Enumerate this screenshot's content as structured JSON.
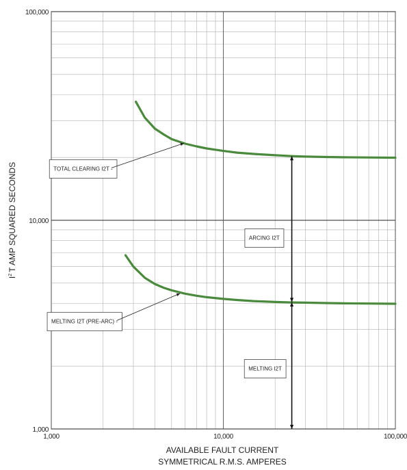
{
  "chart_data": {
    "type": "line",
    "x_scale": "log",
    "y_scale": "log",
    "xlim": [
      1000,
      100000
    ],
    "ylim": [
      1000,
      100000
    ],
    "x_ticks": [
      1000,
      10000,
      100000
    ],
    "x_tick_labels": [
      "1,000",
      "10,000",
      "100,000"
    ],
    "y_ticks": [
      1000,
      10000,
      100000
    ],
    "y_tick_labels": [
      "1,000",
      "10,000",
      "100,000"
    ],
    "xlabel_line1": "AVAILABLE FAULT CURRENT",
    "xlabel_line2": "SYMMETRICAL R.M.S. AMPERES",
    "ylabel_base": "I",
    "ylabel_sup": "2",
    "ylabel_rest": "T AMP SQUARED SECONDS",
    "grid": true,
    "line_color": "#4a8a3c",
    "series": [
      {
        "key": "total",
        "x": [
          3100,
          3500,
          4000,
          4500,
          5000,
          6000,
          7000,
          8000,
          10000,
          12000,
          15000,
          20000,
          25000,
          30000,
          40000,
          50000,
          70000,
          100000
        ],
        "y": [
          37000,
          31000,
          27500,
          25800,
          24500,
          23300,
          22600,
          22100,
          21500,
          21100,
          20800,
          20500,
          20300,
          20200,
          20100,
          20050,
          20000,
          19950
        ]
      },
      {
        "key": "melting",
        "x": [
          2700,
          3000,
          3500,
          4000,
          4500,
          5000,
          6000,
          7000,
          8000,
          10000,
          12000,
          15000,
          20000,
          25000,
          30000,
          40000,
          50000,
          70000,
          100000
        ],
        "y": [
          6800,
          6000,
          5300,
          4950,
          4750,
          4620,
          4450,
          4350,
          4280,
          4200,
          4150,
          4100,
          4060,
          4040,
          4030,
          4010,
          4000,
          3990,
          3980
        ]
      }
    ],
    "annotations": [
      {
        "key": "total_label",
        "text": "TOTAL CLEARING I2T -",
        "target": {
          "x": 5900,
          "y": 23400
        },
        "box_at": {
          "x": 1530,
          "y": 17700
        }
      },
      {
        "key": "melting_label",
        "text": "MELTING I2T (PRE-ARC) -",
        "target": {
          "x": 5600,
          "y": 4460
        },
        "box_at": {
          "x": 1560,
          "y": 3280
        }
      },
      {
        "key": "arcing_label",
        "text": "ARCING I2T",
        "box_at": {
          "x": 17300,
          "y": 8250
        }
      },
      {
        "key": "melting_i2t_label",
        "text": "MELTING I2T",
        "box_at": {
          "x": 17500,
          "y": 1950
        }
      }
    ],
    "arrows": [
      {
        "key": "arcing_arrow",
        "x": 25000,
        "y_from": 4060,
        "y_to": 20300
      },
      {
        "key": "melting_arrow",
        "x": 25000,
        "y_from": 1000,
        "y_to": 4040
      }
    ]
  }
}
